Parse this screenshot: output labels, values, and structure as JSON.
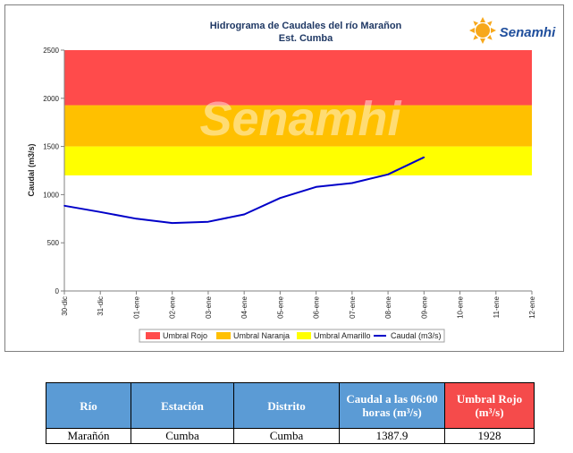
{
  "chart_data": {
    "type": "line",
    "title": "Hidrograma de Caudales del río Marañon",
    "subtitle": "Est. Cumba",
    "ylabel": "Caudal (m3/s)",
    "xlabel": "",
    "ylim": [
      0,
      2500
    ],
    "yticks": [
      "0",
      "500",
      "1000",
      "1500",
      "2000",
      "2500"
    ],
    "ytick_values": [
      0,
      500,
      1000,
      1500,
      2000,
      2500
    ],
    "categories": [
      "30-dic",
      "31-dic",
      "01-ene",
      "02-ene",
      "03-ene",
      "04-ene",
      "05-ene",
      "06-ene",
      "07-ene",
      "08-ene",
      "09-ene",
      "10-ene",
      "11-ene",
      "12-ene"
    ],
    "series": [
      {
        "name": "Caudal (m3/s)",
        "color": "#0000c8",
        "values": [
          885,
          820,
          750,
          705,
          718,
          795,
          965,
          1080,
          1120,
          1210,
          1387.9,
          null,
          null,
          null
        ]
      }
    ],
    "thresholds": [
      {
        "name": "Umbral Rojo",
        "color": "#ff4b4b",
        "from": 1928,
        "to": 2500
      },
      {
        "name": "Umbral Naranja",
        "color": "#ffc000",
        "from": 1500,
        "to": 1928
      },
      {
        "name": "Umbral Amarillo",
        "color": "#ffff00",
        "from": 1200,
        "to": 1500
      }
    ],
    "legend": [
      "Umbral Rojo",
      "Umbral Naranja",
      "Umbral Amarillo",
      "Caudal (m3/s)"
    ],
    "legend_position": "bottom",
    "grid": false
  },
  "logo": {
    "name": "Senamhi",
    "icon": "sun-logo-icon",
    "color": "#1f4e9c",
    "sun_color": "#f7a81b"
  },
  "watermark": "Senamhi",
  "table": {
    "headers": [
      "Río",
      "Estación",
      "Distrito",
      "Caudal a las 06:00 horas (m³/s)",
      "Umbral Rojo (m³/s)"
    ],
    "row": [
      "Marañón",
      "Cumba",
      "Cumba",
      "1387.9",
      "1928"
    ]
  }
}
